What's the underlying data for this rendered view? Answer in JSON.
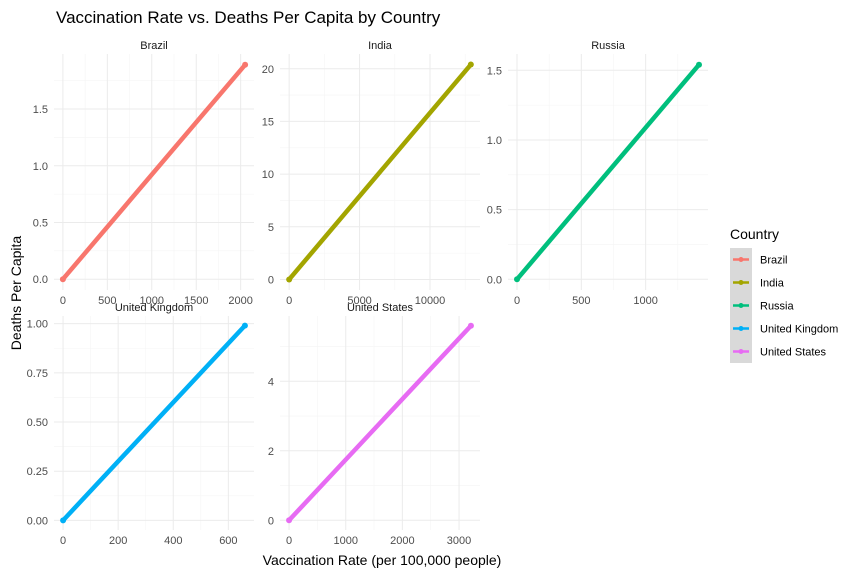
{
  "chart_data": {
    "type": "line",
    "title": "Vaccination Rate vs. Deaths Per Capita by Country",
    "xlabel": "Vaccination Rate (per 100,000 people)",
    "ylabel": "Deaths Per Capita",
    "legend": {
      "title": "Country",
      "placement": "right",
      "entries": [
        "Brazil",
        "India",
        "Russia",
        "United Kingdom",
        "United States"
      ]
    },
    "facets": [
      {
        "name": "Brazil",
        "color": "#F8766D",
        "xlim": [
          -100,
          2150
        ],
        "ylim": [
          -0.095,
          1.985
        ],
        "xticks": [
          0,
          500,
          1000,
          1500,
          2000
        ],
        "xtick_labels": [
          "0",
          "500",
          "1000",
          "1500",
          "2000"
        ],
        "yticks": [
          0.0,
          0.5,
          1.0,
          1.5
        ],
        "ytick_labels": [
          "0.0",
          "0.5",
          "1.0",
          "1.5"
        ],
        "series": {
          "x": [
            0,
            2050
          ],
          "y": [
            0,
            1.89
          ]
        }
      },
      {
        "name": "India",
        "color": "#A3A500",
        "xlim": [
          -650,
          13550
        ],
        "ylim": [
          -1.0,
          21.4
        ],
        "xticks": [
          0,
          5000,
          10000
        ],
        "xtick_labels": [
          "0",
          "5000",
          "10000"
        ],
        "yticks": [
          0,
          5,
          10,
          15,
          20
        ],
        "ytick_labels": [
          "0",
          "5",
          "10",
          "15",
          "20"
        ],
        "series": {
          "x": [
            0,
            12900
          ],
          "y": [
            0,
            20.4
          ]
        }
      },
      {
        "name": "Russia",
        "color": "#00BF7D",
        "xlim": [
          -70,
          1485
        ],
        "ylim": [
          -0.077,
          1.617
        ],
        "xticks": [
          0,
          500,
          1000
        ],
        "xtick_labels": [
          "0",
          "500",
          "1000"
        ],
        "yticks": [
          0.0,
          0.5,
          1.0,
          1.5
        ],
        "ytick_labels": [
          "0.0",
          "0.5",
          "1.0",
          "1.5"
        ],
        "series": {
          "x": [
            0,
            1415
          ],
          "y": [
            0,
            1.54
          ]
        }
      },
      {
        "name": "United Kingdom",
        "color": "#00B0F6",
        "xlim": [
          -33,
          693
        ],
        "ylim": [
          -0.049,
          1.039
        ],
        "xticks": [
          0,
          200,
          400,
          600
        ],
        "xtick_labels": [
          "0",
          "200",
          "400",
          "600"
        ],
        "yticks": [
          0.0,
          0.25,
          0.5,
          0.75,
          1.0
        ],
        "ytick_labels": [
          "0.00",
          "0.25",
          "0.50",
          "0.75",
          "1.00"
        ],
        "series": {
          "x": [
            0,
            660
          ],
          "y": [
            0,
            0.99
          ]
        }
      },
      {
        "name": "United States",
        "color": "#E76BF3",
        "xlim": [
          -160,
          3370
        ],
        "ylim": [
          -0.28,
          5.88
        ],
        "xticks": [
          0,
          1000,
          2000,
          3000
        ],
        "xtick_labels": [
          "0",
          "1000",
          "2000",
          "3000"
        ],
        "yticks": [
          0,
          2,
          4
        ],
        "ytick_labels": [
          "0",
          "2",
          "4"
        ],
        "series": {
          "x": [
            0,
            3210
          ],
          "y": [
            0,
            5.6
          ]
        }
      }
    ]
  }
}
